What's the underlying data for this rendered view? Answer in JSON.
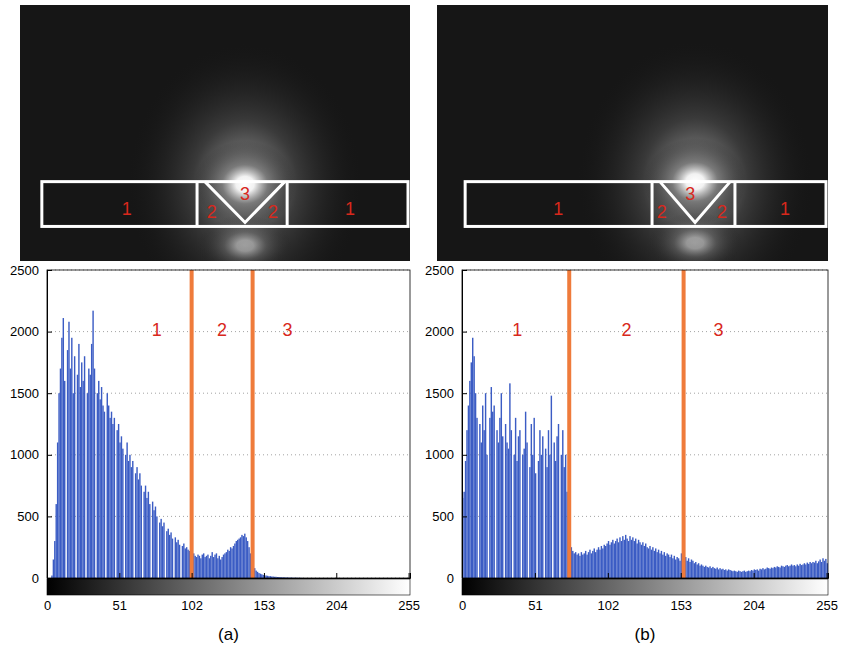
{
  "chart_data": [
    {
      "type": "histogram",
      "title": "(a)",
      "color": "#3b5cc4",
      "grid": true,
      "xlim": [
        0,
        256
      ],
      "xticks": [
        0,
        51,
        102,
        153,
        204,
        255
      ],
      "ylim": [
        0,
        2500
      ],
      "yticks": [
        0,
        500,
        1000,
        1500,
        2000,
        2500
      ],
      "thresholds": [
        102,
        145
      ],
      "annotations": [
        "1",
        "2",
        "3"
      ],
      "image_annotations": [
        "1",
        "2",
        "3",
        "2",
        "1"
      ],
      "bins": [
        0,
        1,
        2,
        3,
        4,
        5,
        6,
        7,
        8,
        9,
        10,
        11,
        12,
        13,
        14,
        15,
        16,
        17,
        18,
        19,
        20,
        21,
        22,
        23,
        24,
        25,
        26,
        27,
        28,
        29,
        30,
        31,
        32,
        33,
        34,
        35,
        36,
        37,
        38,
        39,
        40,
        41,
        42,
        43,
        44,
        45,
        46,
        47,
        48,
        49,
        50,
        51,
        52,
        53,
        54,
        55,
        56,
        57,
        58,
        59,
        60,
        61,
        62,
        63,
        64,
        65,
        66,
        67,
        68,
        69,
        70,
        71,
        72,
        73,
        74,
        75,
        76,
        77,
        78,
        79,
        80,
        81,
        82,
        83,
        84,
        85,
        86,
        87,
        88,
        89,
        90,
        91,
        92,
        93,
        94,
        95,
        96,
        97,
        98,
        99,
        100,
        101,
        102,
        103,
        104,
        105,
        106,
        107,
        108,
        109,
        110,
        111,
        112,
        113,
        114,
        115,
        116,
        117,
        118,
        119,
        120,
        121,
        122,
        123,
        124,
        125,
        126,
        127,
        128,
        129,
        130,
        131,
        132,
        133,
        134,
        135,
        136,
        137,
        138,
        139,
        140,
        141,
        142,
        143,
        144,
        145,
        146,
        147,
        148,
        149,
        150,
        151,
        152,
        153,
        154,
        155,
        156,
        157,
        158,
        159,
        160,
        161,
        162,
        163,
        164,
        165,
        166,
        167,
        168,
        169,
        170,
        171,
        172,
        173,
        174,
        175,
        176,
        177,
        178,
        179,
        180,
        181,
        182,
        183,
        184,
        185,
        186,
        187,
        188,
        189,
        190,
        191,
        192,
        193,
        194,
        195,
        196,
        197,
        198,
        199,
        200,
        201,
        202,
        203,
        204,
        205,
        206,
        207,
        208,
        209,
        210,
        211,
        212,
        213,
        214,
        215,
        216,
        217,
        218,
        219,
        220,
        221,
        222,
        223,
        224,
        225,
        226,
        227,
        228,
        229,
        230,
        231,
        232,
        233,
        234,
        235,
        236,
        237,
        238,
        239,
        240,
        241,
        242,
        243,
        244,
        245,
        246,
        247,
        248,
        249,
        250,
        251,
        252,
        253,
        254,
        255,
        256
      ],
      "values": [
        0,
        0,
        0,
        20,
        150,
        300,
        600,
        1100,
        1500,
        1700,
        1950,
        2110,
        1600,
        0,
        1850,
        2080,
        1700,
        1950,
        1500,
        1800,
        0,
        1650,
        1900,
        1550,
        1750,
        1600,
        1800,
        0,
        1500,
        1700,
        1650,
        1900,
        2170,
        1700,
        0,
        1500,
        1600,
        1450,
        1550,
        1400,
        1350,
        0,
        1500,
        1400,
        1300,
        1350,
        1250,
        1300,
        0,
        1200,
        1250,
        1100,
        1150,
        1050,
        0,
        1000,
        1100,
        950,
        1000,
        900,
        950,
        0,
        850,
        900,
        800,
        850,
        750,
        0,
        700,
        750,
        650,
        700,
        600,
        0,
        620,
        550,
        580,
        500,
        0,
        450,
        480,
        420,
        450,
        0,
        380,
        400,
        350,
        370,
        320,
        0,
        330,
        290,
        310,
        270,
        0,
        260,
        280,
        240,
        250,
        230,
        220,
        210,
        190,
        200,
        180,
        170,
        190,
        180,
        160,
        190,
        200,
        170,
        180,
        190,
        160,
        180,
        210,
        170,
        190,
        200,
        160,
        180,
        150,
        170,
        190,
        200,
        210,
        230,
        220,
        250,
        240,
        260,
        280,
        300,
        310,
        320,
        330,
        350,
        340,
        360,
        330,
        300,
        250,
        200,
        150,
        100,
        80,
        60,
        50,
        40,
        35,
        30,
        25,
        20,
        20,
        18,
        15,
        15,
        12,
        12,
        10,
        10,
        8,
        8,
        6,
        6,
        5,
        5,
        4,
        4,
        3,
        3,
        3,
        2,
        2,
        2,
        2,
        1,
        1,
        1,
        0,
        0,
        0,
        0,
        0,
        0,
        0,
        0,
        0,
        0,
        0,
        0,
        0,
        0,
        0,
        0,
        0,
        0,
        0,
        0,
        0,
        0,
        0,
        0,
        0,
        0,
        0,
        0,
        0,
        0,
        0,
        0,
        0,
        0,
        0,
        0,
        0,
        0,
        0,
        0,
        0,
        0,
        0,
        0,
        0,
        0,
        0,
        0,
        0,
        0,
        0,
        0,
        0,
        0,
        0,
        0,
        0,
        0,
        0,
        0,
        0,
        0,
        0,
        0,
        0,
        0,
        0,
        0,
        0,
        0,
        0,
        0,
        0,
        0,
        0,
        0
      ]
    },
    {
      "type": "histogram",
      "title": "(b)",
      "color": "#3b5cc4",
      "grid": true,
      "xlim": [
        0,
        256
      ],
      "xticks": [
        0,
        51,
        102,
        153,
        204,
        255
      ],
      "ylim": [
        0,
        2500
      ],
      "yticks": [
        0,
        500,
        1000,
        1500,
        2000,
        2500
      ],
      "thresholds": [
        75,
        155
      ],
      "annotations": [
        "1",
        "2",
        "3"
      ],
      "image_annotations": [
        "1",
        "2",
        "3",
        "2",
        "1"
      ],
      "bins": [
        0,
        1,
        2,
        3,
        4,
        5,
        6,
        7,
        8,
        9,
        10,
        11,
        12,
        13,
        14,
        15,
        16,
        17,
        18,
        19,
        20,
        21,
        22,
        23,
        24,
        25,
        26,
        27,
        28,
        29,
        30,
        31,
        32,
        33,
        34,
        35,
        36,
        37,
        38,
        39,
        40,
        41,
        42,
        43,
        44,
        45,
        46,
        47,
        48,
        49,
        50,
        51,
        52,
        53,
        54,
        55,
        56,
        57,
        58,
        59,
        60,
        61,
        62,
        63,
        64,
        65,
        66,
        67,
        68,
        69,
        70,
        71,
        72,
        73,
        74,
        75,
        76,
        77,
        78,
        79,
        80,
        81,
        82,
        83,
        84,
        85,
        86,
        87,
        88,
        89,
        90,
        91,
        92,
        93,
        94,
        95,
        96,
        97,
        98,
        99,
        100,
        101,
        102,
        103,
        104,
        105,
        106,
        107,
        108,
        109,
        110,
        111,
        112,
        113,
        114,
        115,
        116,
        117,
        118,
        119,
        120,
        121,
        122,
        123,
        124,
        125,
        126,
        127,
        128,
        129,
        130,
        131,
        132,
        133,
        134,
        135,
        136,
        137,
        138,
        139,
        140,
        141,
        142,
        143,
        144,
        145,
        146,
        147,
        148,
        149,
        150,
        151,
        152,
        153,
        154,
        155,
        156,
        157,
        158,
        159,
        160,
        161,
        162,
        163,
        164,
        165,
        166,
        167,
        168,
        169,
        170,
        171,
        172,
        173,
        174,
        175,
        176,
        177,
        178,
        179,
        180,
        181,
        182,
        183,
        184,
        185,
        186,
        187,
        188,
        189,
        190,
        191,
        192,
        193,
        194,
        195,
        196,
        197,
        198,
        199,
        200,
        201,
        202,
        203,
        204,
        205,
        206,
        207,
        208,
        209,
        210,
        211,
        212,
        213,
        214,
        215,
        216,
        217,
        218,
        219,
        220,
        221,
        222,
        223,
        224,
        225,
        226,
        227,
        228,
        229,
        230,
        231,
        232,
        233,
        234,
        235,
        236,
        237,
        238,
        239,
        240,
        241,
        242,
        243,
        244,
        245,
        246,
        247,
        248,
        249,
        250,
        251,
        252,
        253,
        254,
        255,
        256
      ],
      "values": [
        650,
        700,
        950,
        1200,
        1400,
        1600,
        1750,
        1950,
        1800,
        1500,
        1300,
        0,
        1250,
        1100,
        1400,
        1200,
        1500,
        1000,
        0,
        1300,
        1550,
        1350,
        1400,
        0,
        1200,
        1100,
        1300,
        1500,
        1150,
        0,
        1250,
        1100,
        1050,
        1580,
        1200,
        0,
        1000,
        1300,
        950,
        1150,
        1200,
        0,
        1000,
        1050,
        1350,
        1100,
        0,
        900,
        1250,
        1000,
        1300,
        850,
        0,
        950,
        1200,
        1000,
        1150,
        0,
        1050,
        900,
        1200,
        1000,
        1480,
        0,
        1100,
        950,
        1150,
        1250,
        0,
        1000,
        1200,
        900,
        1000,
        700,
        500,
        350,
        250,
        220,
        200,
        210,
        190,
        200,
        180,
        210,
        190,
        200,
        220,
        190,
        210,
        230,
        200,
        220,
        240,
        210,
        230,
        250,
        230,
        260,
        240,
        270,
        260,
        280,
        300,
        270,
        290,
        310,
        280,
        300,
        320,
        290,
        330,
        300,
        340,
        310,
        350,
        320,
        300,
        340,
        310,
        330,
        300,
        320,
        280,
        310,
        290,
        270,
        290,
        260,
        280,
        250,
        240,
        260,
        230,
        250,
        220,
        240,
        210,
        230,
        200,
        220,
        190,
        210,
        180,
        200,
        190,
        170,
        190,
        160,
        180,
        150,
        170,
        160,
        140,
        200,
        180,
        150,
        170,
        140,
        160,
        130,
        150,
        140,
        120,
        130,
        110,
        120,
        100,
        110,
        100,
        90,
        100,
        90,
        85,
        95,
        80,
        90,
        80,
        75,
        85,
        70,
        80,
        70,
        75,
        65,
        70,
        60,
        70,
        65,
        60,
        55,
        60,
        55,
        50,
        60,
        55,
        50,
        55,
        60,
        50,
        55,
        60,
        55,
        65,
        60,
        70,
        65,
        70,
        60,
        75,
        70,
        80,
        70,
        75,
        85,
        80,
        75,
        85,
        80,
        90,
        85,
        95,
        90,
        85,
        100,
        95,
        90,
        100,
        105,
        95,
        100,
        110,
        100,
        105,
        95,
        110,
        100,
        115,
        105,
        110,
        120,
        110,
        125,
        115,
        130,
        120,
        130,
        125,
        140,
        120,
        135,
        150,
        130,
        160,
        140,
        155,
        120
      ]
    }
  ]
}
